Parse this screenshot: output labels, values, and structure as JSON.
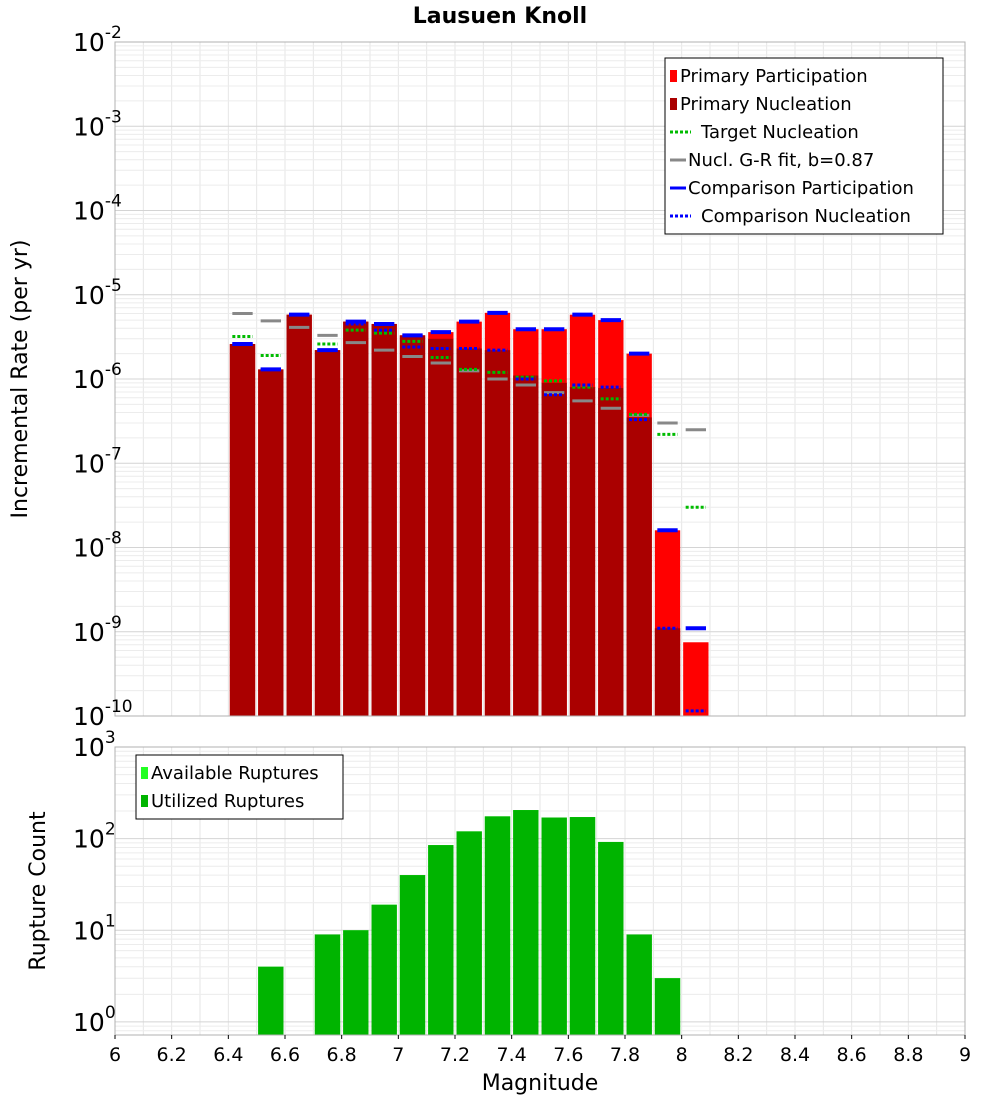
{
  "chart_data": [
    {
      "type": "bar",
      "title": "Lausuen Knoll",
      "ylabel": "Incremental Rate (per yr)",
      "xlabel": "",
      "x_range": [
        6,
        9
      ],
      "y_log": true,
      "ylim": [
        1e-10,
        0.01
      ],
      "y_tick_exponents": [
        -10,
        -9,
        -8,
        -7,
        -6,
        -5,
        -4,
        -3,
        -2
      ],
      "grid": true,
      "legend_position": "top-right",
      "bin_width": 0.1,
      "magnitudes": [
        6.45,
        6.55,
        6.65,
        6.75,
        6.85,
        6.95,
        7.05,
        7.15,
        7.25,
        7.35,
        7.45,
        7.55,
        7.65,
        7.75,
        7.85,
        7.95,
        8.05
      ],
      "series": [
        {
          "name": "Primary Participation",
          "style": "bar",
          "color": "#ff0000",
          "values": [
            2.6e-06,
            1.3e-06,
            5.8e-06,
            2.2e-06,
            4.8e-06,
            4.5e-06,
            3.3e-06,
            3.6e-06,
            4.8e-06,
            6.1e-06,
            3.9e-06,
            3.9e-06,
            5.8e-06,
            5e-06,
            2e-06,
            1.6e-08,
            7.5e-10
          ]
        },
        {
          "name": "Primary Nucleation",
          "style": "bar",
          "color": "#aa0000",
          "values": [
            2.6e-06,
            1.3e-06,
            5.8e-06,
            2.2e-06,
            4.8e-06,
            4.5e-06,
            3.3e-06,
            3e-06,
            2.3e-06,
            2.2e-06,
            1.1e-06,
            9e-07,
            8e-07,
            7.8e-07,
            3.5e-07,
            1.1e-09,
            null
          ]
        },
        {
          "name": "Target Nucleation",
          "style": "dotted-step",
          "color": "#00bb00",
          "values": [
            3.2e-06,
            1.9e-06,
            null,
            2.6e-06,
            3.8e-06,
            3.5e-06,
            2.8e-06,
            1.8e-06,
            1.3e-06,
            1.2e-06,
            1.05e-06,
            9.5e-07,
            8e-07,
            5.8e-07,
            3.8e-07,
            2.2e-07,
            3e-08
          ]
        },
        {
          "name": "Nucl. G-R fit, b=0.87",
          "style": "solid-step",
          "color": "#888888",
          "values": [
            6e-06,
            4.9e-06,
            4.1e-06,
            3.3e-06,
            2.7e-06,
            2.2e-06,
            1.85e-06,
            1.55e-06,
            1.25e-06,
            1e-06,
            8.5e-07,
            6.9e-07,
            5.5e-07,
            4.5e-07,
            3.7e-07,
            3e-07,
            2.5e-07
          ]
        },
        {
          "name": "Comparison Participation",
          "style": "solid-step",
          "color": "#0000ff",
          "values": [
            2.6e-06,
            1.3e-06,
            5.8e-06,
            2.2e-06,
            4.8e-06,
            4.5e-06,
            3.3e-06,
            3.6e-06,
            4.8e-06,
            6.1e-06,
            3.9e-06,
            3.9e-06,
            5.8e-06,
            5e-06,
            2e-06,
            1.6e-08,
            1.1e-09
          ]
        },
        {
          "name": "Comparison Nucleation",
          "style": "dotted-step",
          "color": "#0000ff",
          "values": [
            2.6e-06,
            1.3e-06,
            5.8e-06,
            2.2e-06,
            4.5e-06,
            3.8e-06,
            2.4e-06,
            2.3e-06,
            2.3e-06,
            2.2e-06,
            1e-06,
            6.5e-07,
            8.5e-07,
            8e-07,
            3.3e-07,
            1.1e-09,
            1.15e-10
          ]
        }
      ]
    },
    {
      "type": "bar",
      "ylabel": "Rupture Count",
      "xlabel": "Magnitude",
      "x_range": [
        6,
        9
      ],
      "x_ticks": [
        "6",
        "6.2",
        "6.4",
        "6.6",
        "6.8",
        "7",
        "7.2",
        "7.4",
        "7.6",
        "7.8",
        "8",
        "8.2",
        "8.4",
        "8.6",
        "8.8",
        "9"
      ],
      "y_log": true,
      "ylim": [
        0.72,
        1000
      ],
      "y_tick_exponents": [
        0,
        1,
        2,
        3
      ],
      "grid": true,
      "legend_position": "top-left",
      "magnitudes": [
        6.55,
        6.75,
        6.85,
        6.95,
        7.05,
        7.15,
        7.25,
        7.35,
        7.45,
        7.55,
        7.65,
        7.75,
        7.85,
        7.95
      ],
      "series": [
        {
          "name": "Available Ruptures",
          "color": "#22ff22",
          "values": [
            4,
            9,
            10,
            19,
            40,
            85,
            120,
            175,
            205,
            170,
            172,
            92,
            9,
            3
          ]
        },
        {
          "name": "Utilized Ruptures",
          "color": "#00b400",
          "values": [
            4,
            9,
            10,
            19,
            40,
            85,
            120,
            175,
            205,
            170,
            172,
            92,
            9,
            3
          ]
        }
      ]
    }
  ]
}
